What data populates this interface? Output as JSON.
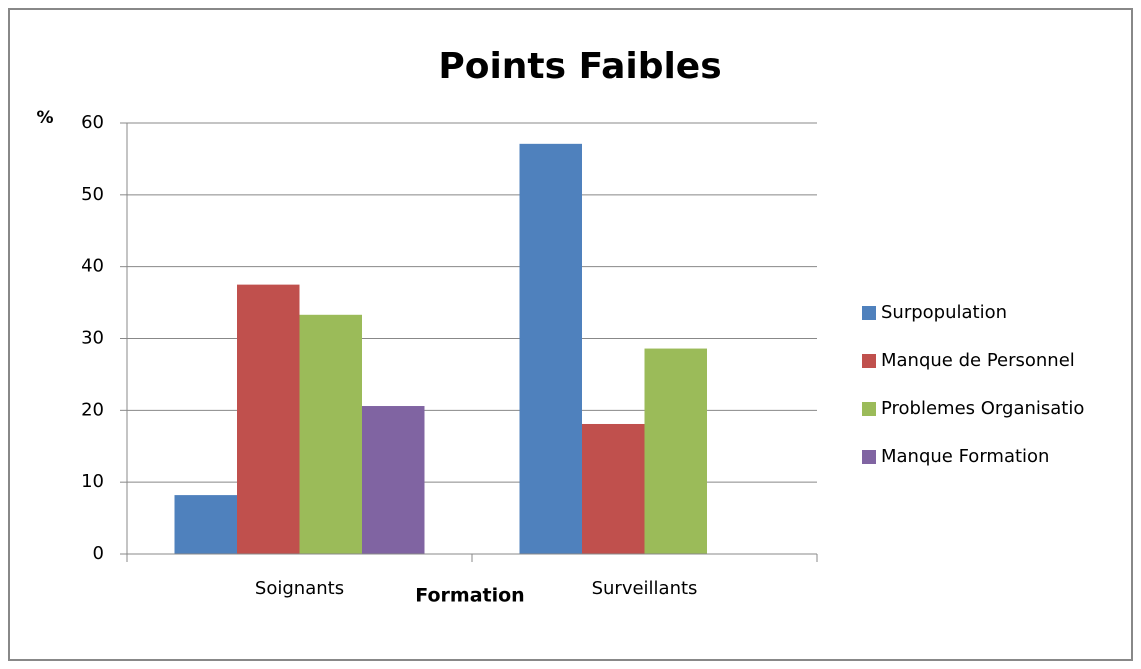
{
  "chart_data": {
    "type": "bar",
    "title": "Points Faibles",
    "y_label": "%",
    "x_label": "Formation",
    "categories": [
      "Soignants",
      "Surveillants"
    ],
    "series": [
      {
        "name": "Surpopulation",
        "color": "#4f81bd",
        "values": [
          8.2,
          57.1
        ]
      },
      {
        "name": "Manque de Personnel",
        "color": "#c0504d",
        "values": [
          37.5,
          18.1
        ]
      },
      {
        "name": "Problemes Organisatio",
        "color": "#9bbb59",
        "values": [
          33.3,
          28.6
        ]
      },
      {
        "name": "Manque Formation",
        "color": "#8064a2",
        "values": [
          20.6,
          null
        ]
      }
    ],
    "ylim": [
      0,
      60
    ],
    "yticks": [
      0,
      10,
      20,
      30,
      40,
      50,
      60
    ],
    "grid": true,
    "legend": "right"
  }
}
